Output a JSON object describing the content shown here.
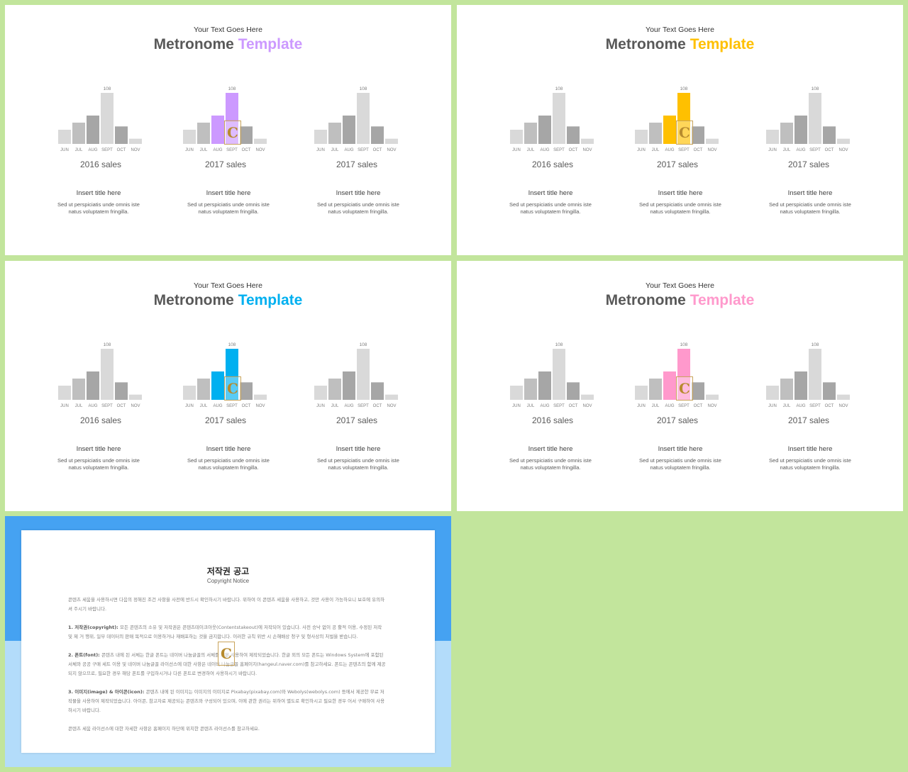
{
  "slides": [
    {
      "subtitle": "Your Text Goes Here",
      "title_main": "Metronome",
      "title_accent": "Template",
      "accent_color": "#cc99ff",
      "charts": [
        {
          "label": "2016 sales",
          "highlight": false
        },
        {
          "label": "2017 sales",
          "highlight": true
        },
        {
          "label": "2017 sales",
          "highlight": false
        }
      ],
      "blocks": [
        {
          "title": "Insert title here",
          "desc": "Sed ut perspiciatis unde omnis iste natus voluptatem fringilla."
        },
        {
          "title": "Insert title here",
          "desc": "Sed ut perspiciatis unde omnis iste natus voluptatem fringilla."
        },
        {
          "title": "Insert title here",
          "desc": "Sed ut perspiciatis unde omnis iste natus voluptatem fringilla."
        }
      ]
    },
    {
      "subtitle": "Your Text Goes Here",
      "title_main": "Metronome",
      "title_accent": "Template",
      "accent_color": "#ffc000",
      "charts": [
        {
          "label": "2016 sales",
          "highlight": false
        },
        {
          "label": "2017 sales",
          "highlight": true
        },
        {
          "label": "2017 sales",
          "highlight": false
        }
      ],
      "blocks": [
        {
          "title": "Insert title here",
          "desc": "Sed ut perspiciatis unde omnis iste natus voluptatem fringilla."
        },
        {
          "title": "Insert title here",
          "desc": "Sed ut perspiciatis unde omnis iste natus voluptatem fringilla."
        },
        {
          "title": "Insert title here",
          "desc": "Sed ut perspiciatis unde omnis iste natus voluptatem fringilla."
        }
      ]
    },
    {
      "subtitle": "Your Text Goes Here",
      "title_main": "Metronome",
      "title_accent": "Template",
      "accent_color": "#00b0f0",
      "charts": [
        {
          "label": "2016 sales",
          "highlight": false
        },
        {
          "label": "2017 sales",
          "highlight": true
        },
        {
          "label": "2017 sales",
          "highlight": false
        }
      ],
      "blocks": [
        {
          "title": "Insert title here",
          "desc": "Sed ut perspiciatis unde omnis iste natus voluptatem fringilla."
        },
        {
          "title": "Insert title here",
          "desc": "Sed ut perspiciatis unde omnis iste natus voluptatem fringilla."
        },
        {
          "title": "Insert title here",
          "desc": "Sed ut perspiciatis unde omnis iste natus voluptatem fringilla."
        }
      ]
    },
    {
      "subtitle": "Your Text Goes Here",
      "title_main": "Metronome",
      "title_accent": "Template",
      "accent_color": "#ff99cc",
      "charts": [
        {
          "label": "2016 sales",
          "highlight": false
        },
        {
          "label": "2017 sales",
          "highlight": true
        },
        {
          "label": "2017 sales",
          "highlight": false
        }
      ],
      "blocks": [
        {
          "title": "Insert title here",
          "desc": "Sed ut perspiciatis unde omnis iste natus voluptatem fringilla."
        },
        {
          "title": "Insert title here",
          "desc": "Sed ut perspiciatis unde omnis iste natus voluptatem fringilla."
        },
        {
          "title": "Insert title here",
          "desc": "Sed ut perspiciatis unde omnis iste natus voluptatem fringilla."
        }
      ]
    }
  ],
  "chart_data": {
    "type": "bar",
    "categories": [
      "JUN",
      "JUL",
      "AUG",
      "SEPT",
      "OCT",
      "NOV"
    ],
    "values": [
      30,
      45,
      60,
      108,
      37,
      11
    ],
    "data_labels": [
      "",
      "",
      "",
      "108",
      "",
      ""
    ],
    "bar_colors": [
      "#d9d9d9",
      "#bfbfbf",
      "#a6a6a6",
      "#d9d9d9",
      "#a6a6a6",
      "#d9d9d9"
    ],
    "highlight_categories": [
      "AUG",
      "SEPT"
    ],
    "ylim": [
      0,
      108
    ]
  },
  "watermark": {
    "glyph": "C"
  },
  "notice": {
    "title": "저작권 공고",
    "subtitle": "Copyright Notice",
    "paragraphs": [
      {
        "head": "",
        "text": "콘텐츠 세움을 사용하시면 다음의 정해진 조건 사항을 사전에 반드시 확인하시기 바랍니다. 위하여 이 콘텐츠 세움을 사용하고, 것만 사용이 가능하오니 보호에 유의하셔 주시기 바랍니다."
      },
      {
        "head": "1. 저작권(copyright): ",
        "text": "모든 콘텐츠의 소유 및 저작권은 콘텐츠테이크아웃(Contentstakeout)에 저작되어 있습니다. 사전 승낙 없이 공 활적 이용, 수정된 저작 및 제 거 행위, 일부 데이터의 판매 목적으로 이용하거나 재배포하는 것을 금지합니다. 이러한 규칙 위반 시 손해배상 청구 및 형사상의 처벌을 받습니다."
      },
      {
        "head": "2. 폰트(font): ",
        "text": "콘텐츠 내에 된 서체는 한글 폰트는 네이버 나눔글꼴의 서체를 기본 사용하여 제작되었습니다. 한글 외의 모든 폰트는 Windows System에 포함된 서체와 공공 구매 세트 이용 및 네이버 나눔글꼴 라이선스에 대한 사항은 네이버 나눔글꼴 홈페이지(hangeul.naver.com)를 참고하세요. 폰트는 콘텐츠의 함께 제공되지 않으므로, 필요한 경우 해당 폰트를 구입하시거나 다른 폰트로 변경하여 사용하시기 바랍니다."
      },
      {
        "head": "3. 이미지(image) & 아이콘(icon): ",
        "text": "콘텐츠 내에 된 이미지는 이미지의 이미지로 Pixabay(pixabay.com)와 Webolys(webolys.com) 등에서 제공한 무료 저작물을 사용하여 제작되었습니다. 아이콘, 참고자료 제공되는 콘텐츠와 구성되어 있으며, 이에 관한 권리는 위하여 별도로 확인하시고 필요한 경우 어서 구매하여 사용하시기 바랍니다."
      },
      {
        "head": "",
        "text": "콘텐츠 세움 라이선스에 대한 자세한 사항은 홈페이지 하단에 위치한 콘텐츠 라이선스를 참고하세요."
      }
    ]
  }
}
